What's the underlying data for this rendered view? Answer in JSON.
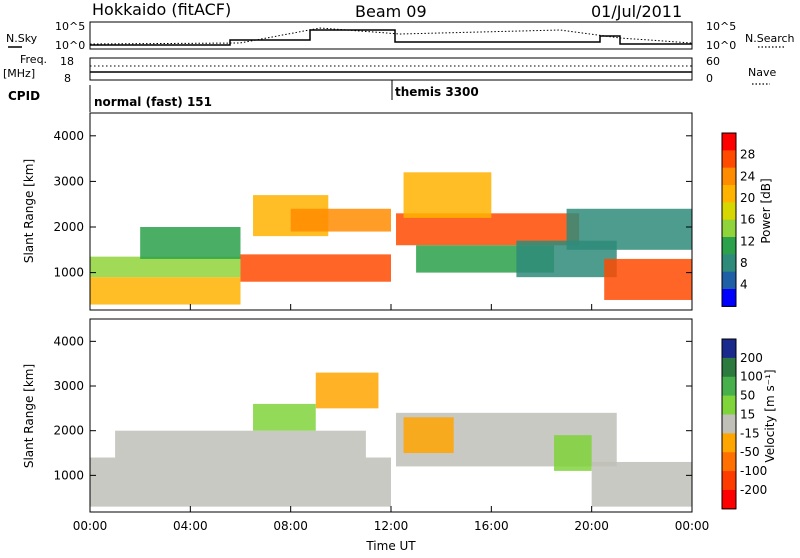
{
  "header": {
    "station": "Hokkaido (fitACF)",
    "beam": "Beam 09",
    "date": "01/Jul/2011"
  },
  "summary_panels": {
    "nsky_label": "N.Sky",
    "nsearch_label": "N.Search",
    "freq_label_top": "Freq.",
    "freq_label_unit": "[MHz]",
    "nave_label": "Nave",
    "cpid_label": "CPID",
    "left_ticks_noise": [
      "10^5",
      "10^0"
    ],
    "right_ticks_noise": [
      "10^5",
      "10^0"
    ],
    "left_ticks_freq": [
      "18",
      "8"
    ],
    "right_ticks_nave": [
      "60",
      "0"
    ],
    "cpid_segments": [
      {
        "label": "normal (fast) 151",
        "start_hour": 0,
        "end_hour": 12
      },
      {
        "label": "themis 3300",
        "start_hour": 12,
        "end_hour": 24
      }
    ]
  },
  "chart_data": [
    {
      "type": "heatmap",
      "title": "",
      "ylabel": "Slant Range [km]",
      "xlabel": "",
      "colorbar_label": "Power [dB]",
      "colorbar_ticks": [
        "28",
        "24",
        "20",
        "16",
        "12",
        "8",
        "4"
      ],
      "colorbar_colors": [
        "#ff0000",
        "#ff4a00",
        "#ff8c00",
        "#ffb300",
        "#d6d600",
        "#8fd43a",
        "#2aa14a",
        "#2e8b7a",
        "#1f5fa6",
        "#0000ff"
      ],
      "ylim": [
        180,
        4500
      ],
      "yticks": [
        1000,
        2000,
        3000,
        4000
      ],
      "xlim_hours": [
        0,
        24
      ],
      "regions": [
        {
          "t0": 0.0,
          "t1": 6.0,
          "r0": 300,
          "r1": 900,
          "value": 22
        },
        {
          "t0": 0.0,
          "t1": 6.0,
          "r0": 900,
          "r1": 1350,
          "value": 16
        },
        {
          "t0": 2.0,
          "t1": 6.0,
          "r0": 1300,
          "r1": 2000,
          "value": 12
        },
        {
          "t0": 6.0,
          "t1": 12.0,
          "r0": 800,
          "r1": 1400,
          "value": 26
        },
        {
          "t0": 6.5,
          "t1": 9.5,
          "r0": 1800,
          "r1": 2700,
          "value": 20
        },
        {
          "t0": 8.0,
          "t1": 12.0,
          "r0": 1900,
          "r1": 2400,
          "value": 24
        },
        {
          "t0": 12.2,
          "t1": 19.5,
          "r0": 1600,
          "r1": 2300,
          "value": 28
        },
        {
          "t0": 12.5,
          "t1": 16.0,
          "r0": 2200,
          "r1": 3200,
          "value": 22
        },
        {
          "t0": 13.0,
          "t1": 18.5,
          "r0": 1000,
          "r1": 1600,
          "value": 10
        },
        {
          "t0": 17.0,
          "t1": 21.0,
          "r0": 900,
          "r1": 1700,
          "value": 8
        },
        {
          "t0": 20.5,
          "t1": 24.0,
          "r0": 400,
          "r1": 1300,
          "value": 28
        },
        {
          "t0": 19.0,
          "t1": 24.0,
          "r0": 1500,
          "r1": 2400,
          "value": 7
        }
      ]
    },
    {
      "type": "heatmap",
      "title": "",
      "ylabel": "Slant Range [km]",
      "xlabel": "Time UT",
      "colorbar_label": "Velocity [m s⁻¹]",
      "colorbar_ticks": [
        "200",
        "100",
        "50",
        "15",
        "-15",
        "-50",
        "-100",
        "-200"
      ],
      "colorbar_colors": [
        "#1a2a8c",
        "#2c7a3e",
        "#47b04b",
        "#7fd43a",
        "#c0c0b8",
        "#ffa500",
        "#ff7000",
        "#ff3c00",
        "#ff0000"
      ],
      "ylim": [
        180,
        4500
      ],
      "yticks": [
        1000,
        2000,
        3000,
        4000
      ],
      "xlim_hours": [
        0,
        24
      ],
      "xtick_labels": [
        "00:00",
        "04:00",
        "08:00",
        "12:00",
        "16:00",
        "20:00",
        "00:00"
      ],
      "regions": [
        {
          "t0": 0.0,
          "t1": 12.0,
          "r0": 300,
          "r1": 1400,
          "value": 0
        },
        {
          "t0": 1.0,
          "t1": 11.0,
          "r0": 1400,
          "r1": 2000,
          "value": 0
        },
        {
          "t0": 12.2,
          "t1": 21.0,
          "r0": 1200,
          "r1": 2400,
          "value": 0
        },
        {
          "t0": 9.0,
          "t1": 11.5,
          "r0": 2500,
          "r1": 3300,
          "value": -30
        },
        {
          "t0": 12.5,
          "t1": 14.5,
          "r0": 1500,
          "r1": 2300,
          "value": -30
        },
        {
          "t0": 6.5,
          "t1": 9.0,
          "r0": 2000,
          "r1": 2600,
          "value": 30
        },
        {
          "t0": 18.5,
          "t1": 20.0,
          "r0": 1100,
          "r1": 1900,
          "value": 30
        },
        {
          "t0": 20.0,
          "t1": 24.0,
          "r0": 300,
          "r1": 1300,
          "value": 0
        }
      ]
    }
  ]
}
